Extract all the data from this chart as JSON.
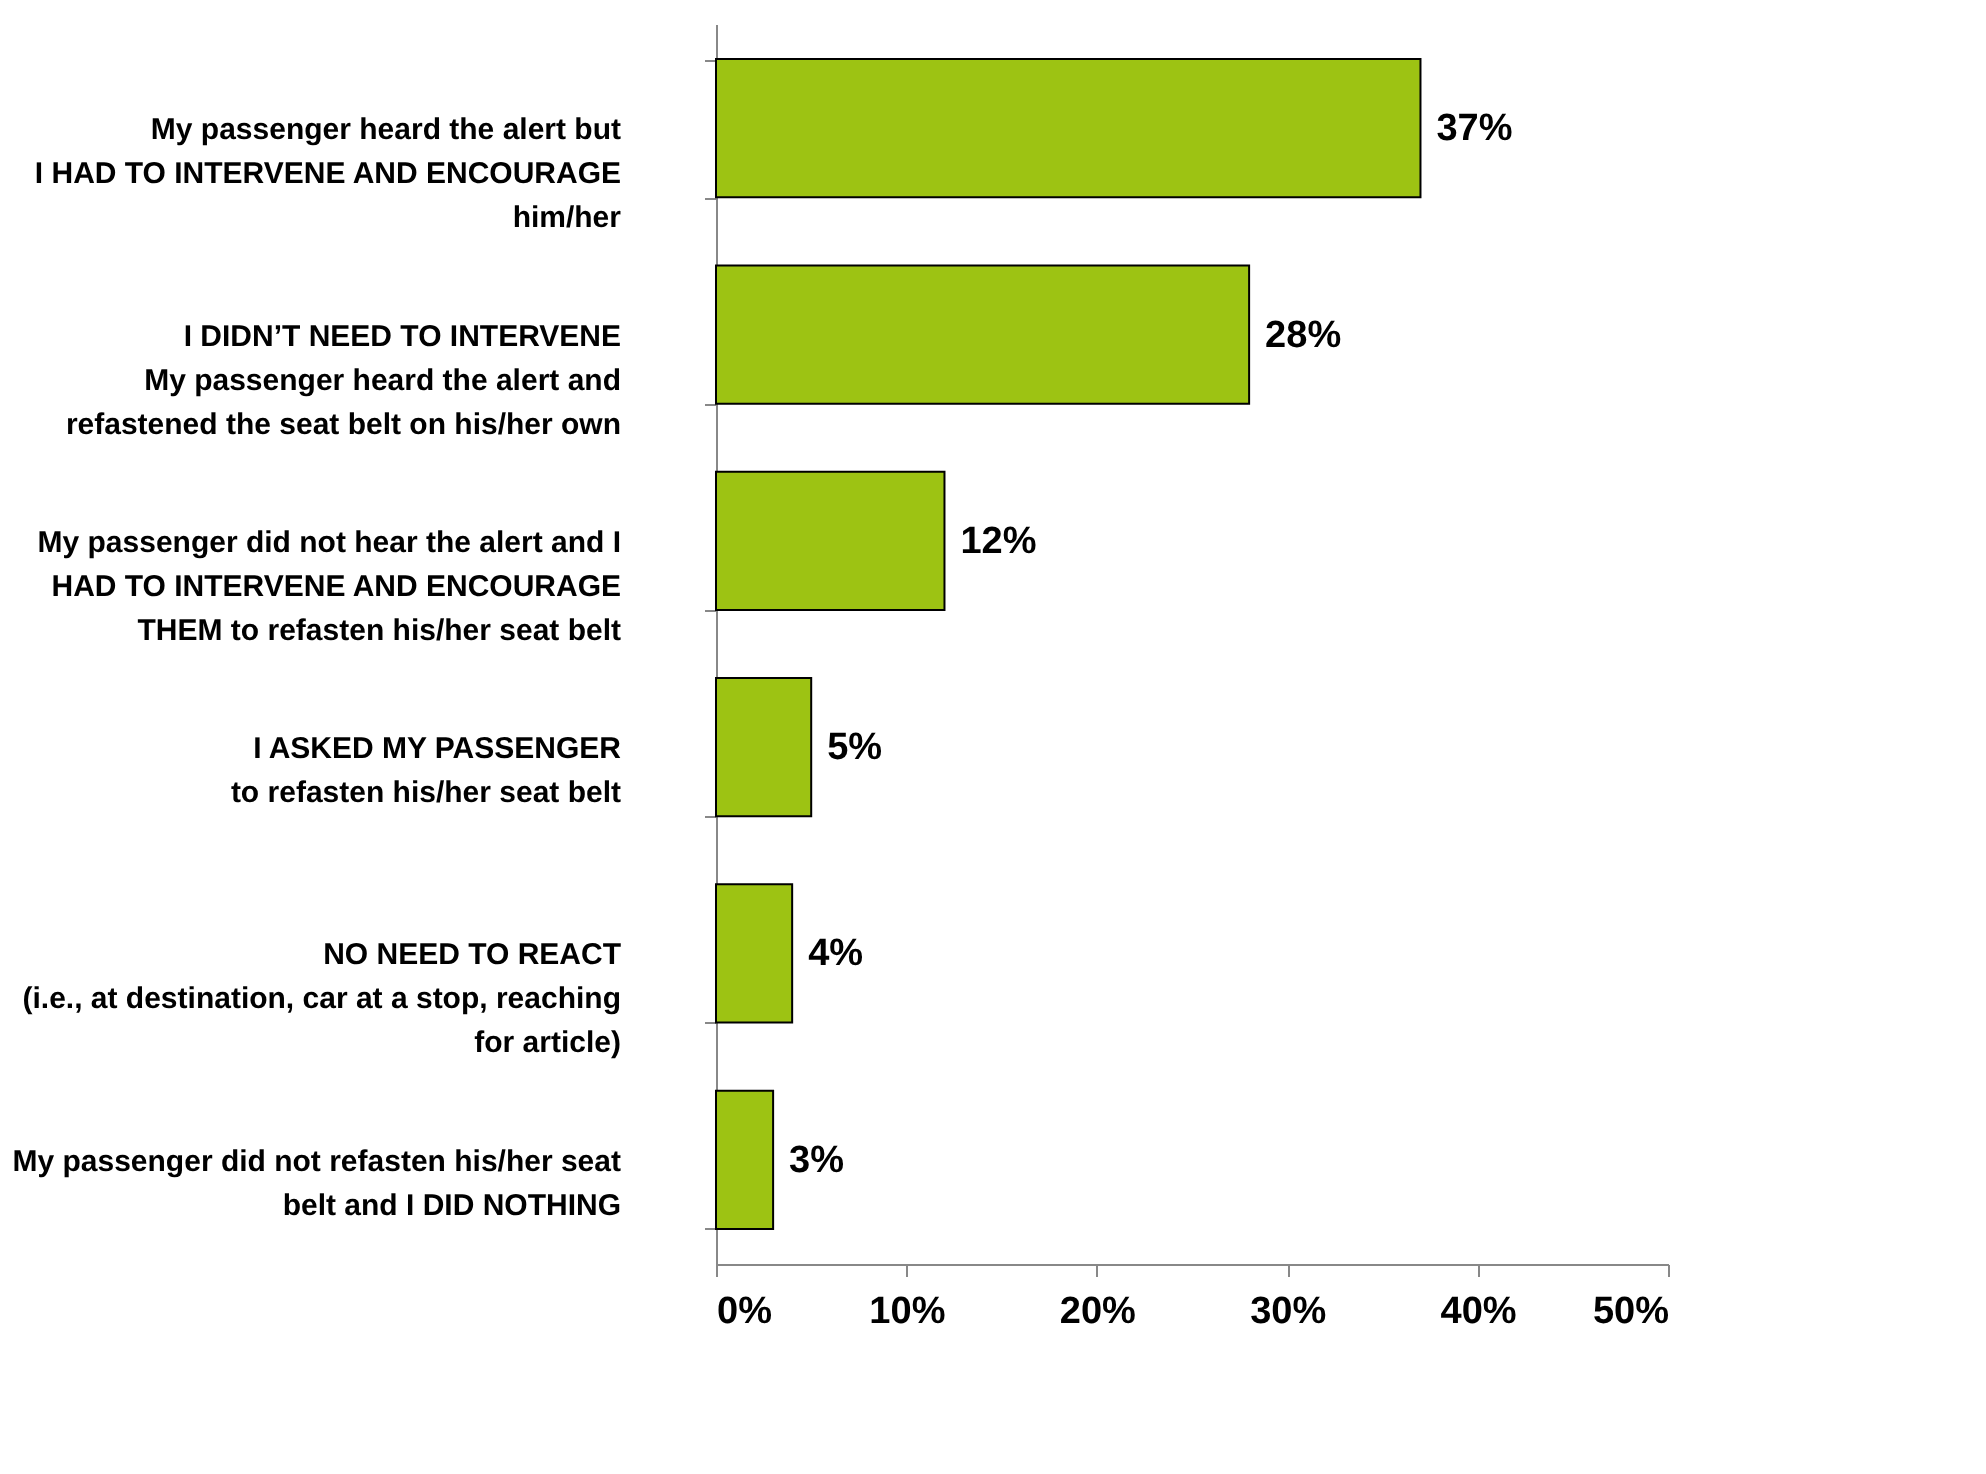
{
  "chart_data": {
    "type": "bar",
    "orientation": "horizontal",
    "categories": [
      "My passenger heard the alert but\nI HAD TO INTERVENE AND ENCOURAGE\nhim/her",
      "I DIDN’T NEED TO INTERVENE\nMy passenger heard the alert and\nrefastened the seat belt on his/her own",
      "My passenger did not hear the alert and I\nHAD TO INTERVENE AND ENCOURAGE\nTHEM to refasten his/her seat belt",
      "I ASKED MY PASSENGER\nto refasten his/her seat belt",
      "NO NEED TO REACT\n(i.e., at destination, car at a stop, reaching\nfor article)",
      "My passenger did not refasten his/her seat\nbelt and I DID NOTHING"
    ],
    "values": [
      37,
      28,
      12,
      5,
      4,
      3
    ],
    "value_labels": [
      "37%",
      "28%",
      "12%",
      "5%",
      "4%",
      "3%"
    ],
    "color": "#9dc313",
    "xlim": [
      0,
      50
    ],
    "xticks": [
      {
        "value": 0,
        "label": "0%"
      },
      {
        "value": 10,
        "label": "10%"
      },
      {
        "value": 20,
        "label": "20%"
      },
      {
        "value": 30,
        "label": "30%"
      },
      {
        "value": 40,
        "label": "40%"
      },
      {
        "value": 50,
        "label": "50%"
      }
    ],
    "grid": false
  }
}
